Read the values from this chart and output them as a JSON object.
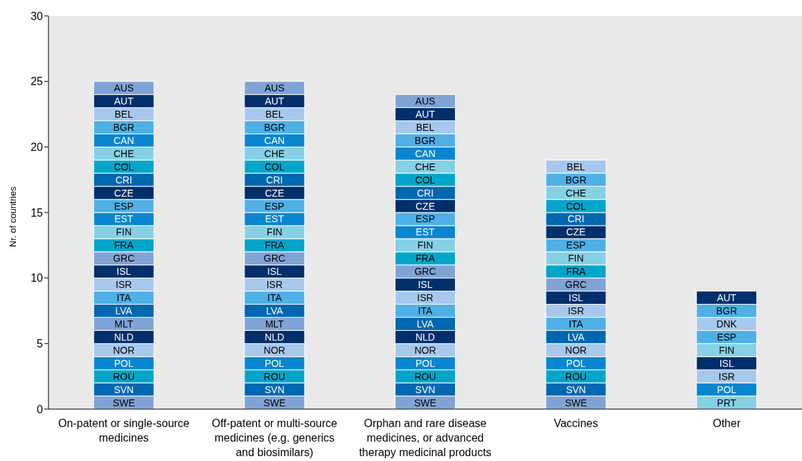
{
  "chart_data": {
    "type": "bar",
    "stacked": true,
    "ylabel": "Nr. of countries",
    "categories": [
      "On-patent or single-source medicines",
      "Off-patent or multi-source medicines (e.g. generics and biosimilars)",
      "Orphan and rare disease medicines, or advanced therapy medicinal products",
      "Vaccines",
      "Other"
    ],
    "ylim": [
      0,
      30
    ],
    "yticks": [
      0,
      5,
      10,
      15,
      20,
      25,
      30
    ],
    "legend": false,
    "series": [
      {
        "name": "SWE",
        "color": "#7fa3d5",
        "values": [
          1,
          1,
          1,
          1,
          null
        ]
      },
      {
        "name": "SVN",
        "color": "#0068b0",
        "values": [
          1,
          1,
          1,
          1,
          null
        ]
      },
      {
        "name": "ROU",
        "color": "#00a5c9",
        "values": [
          1,
          1,
          1,
          1,
          null
        ]
      },
      {
        "name": "PRT",
        "color": "#86d0e6",
        "values": [
          null,
          null,
          null,
          null,
          1
        ]
      },
      {
        "name": "POL",
        "color": "#0a85d0",
        "values": [
          1,
          1,
          1,
          1,
          1
        ]
      },
      {
        "name": "NOR",
        "color": "#a6c8ec",
        "values": [
          1,
          1,
          1,
          1,
          null
        ]
      },
      {
        "name": "NLD",
        "color": "#002f6c",
        "values": [
          1,
          1,
          1,
          null,
          null
        ]
      },
      {
        "name": "MLT",
        "color": "#7fa3d5",
        "values": [
          1,
          1,
          null,
          null,
          null
        ]
      },
      {
        "name": "LVA",
        "color": "#0068b0",
        "values": [
          1,
          1,
          1,
          1,
          null
        ]
      },
      {
        "name": "ITA",
        "color": "#4fb0e6",
        "values": [
          1,
          1,
          1,
          1,
          null
        ]
      },
      {
        "name": "ISR",
        "color": "#a6c8ec",
        "values": [
          1,
          1,
          1,
          1,
          1
        ]
      },
      {
        "name": "ISL",
        "color": "#002f6c",
        "values": [
          1,
          1,
          1,
          1,
          1
        ]
      },
      {
        "name": "GRC",
        "color": "#7fa3d5",
        "values": [
          1,
          1,
          1,
          1,
          null
        ]
      },
      {
        "name": "FRA",
        "color": "#00a5c9",
        "values": [
          1,
          1,
          1,
          1,
          null
        ]
      },
      {
        "name": "FIN",
        "color": "#86d0e6",
        "values": [
          1,
          1,
          1,
          1,
          1
        ]
      },
      {
        "name": "EST",
        "color": "#0a85d0",
        "values": [
          1,
          1,
          1,
          null,
          null
        ]
      },
      {
        "name": "ESP",
        "color": "#4fb0e6",
        "values": [
          1,
          1,
          1,
          1,
          1
        ]
      },
      {
        "name": "DNK",
        "color": "#a6c8ec",
        "values": [
          null,
          null,
          null,
          null,
          1
        ]
      },
      {
        "name": "CZE",
        "color": "#002f6c",
        "values": [
          1,
          1,
          1,
          1,
          null
        ]
      },
      {
        "name": "CRI",
        "color": "#0068b0",
        "values": [
          1,
          1,
          1,
          1,
          null
        ]
      },
      {
        "name": "COL",
        "color": "#00a5c9",
        "values": [
          1,
          1,
          1,
          1,
          null
        ]
      },
      {
        "name": "CHE",
        "color": "#86d0e6",
        "values": [
          1,
          1,
          1,
          1,
          null
        ]
      },
      {
        "name": "CAN",
        "color": "#0a85d0",
        "values": [
          1,
          1,
          1,
          null,
          null
        ]
      },
      {
        "name": "BGR",
        "color": "#4fb0e6",
        "values": [
          1,
          1,
          1,
          1,
          1
        ]
      },
      {
        "name": "BEL",
        "color": "#a6c8ec",
        "values": [
          1,
          1,
          1,
          1,
          null
        ]
      },
      {
        "name": "AUT",
        "color": "#002f6c",
        "values": [
          1,
          1,
          1,
          null,
          1
        ]
      },
      {
        "name": "AUS",
        "color": "#7fa3d5",
        "values": [
          1,
          1,
          1,
          null,
          null
        ]
      }
    ]
  }
}
